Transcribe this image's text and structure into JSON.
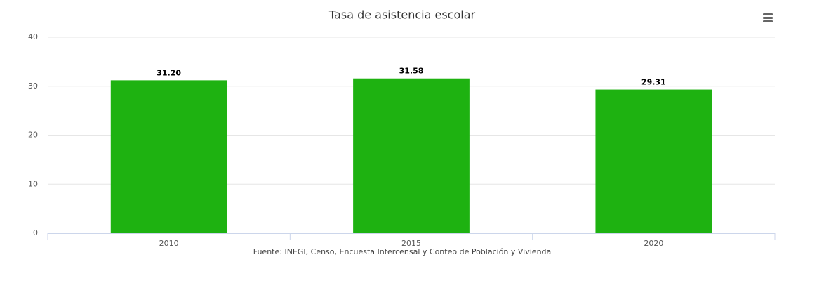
{
  "chart_data": {
    "type": "bar",
    "title": "Tasa de asistencia escolar",
    "caption": "Fuente: INEGI, Censo, Encuesta Intercensal y Conteo de Población y Vivienda",
    "categories": [
      "2010",
      "2015",
      "2020"
    ],
    "values": [
      31.2,
      31.58,
      29.31
    ],
    "value_labels": [
      "31.20",
      "31.58",
      "29.31"
    ],
    "color": "#1eb211",
    "ylim": [
      0,
      40
    ],
    "yticks": [
      0,
      10,
      20,
      30,
      40
    ],
    "grid": true
  }
}
